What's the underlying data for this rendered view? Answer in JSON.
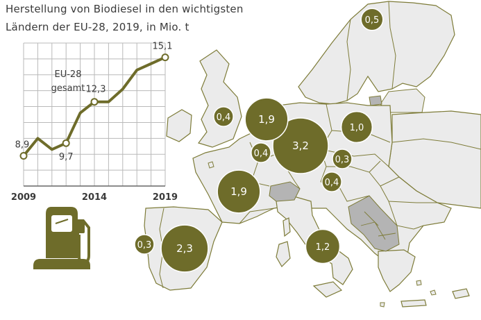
{
  "title": {
    "line1": "Herstellung von Biodiesel in den wichtigsten",
    "line2": "Ländern der EU-28, 2019, in Mio. t"
  },
  "colors": {
    "bubble": "#6e6c2a",
    "bubble_stroke": "#ffffff",
    "land": "#ebebeb",
    "border": "#7d7b38",
    "nonEU": "#b4b4b4",
    "line": "#6e6c2a",
    "grid": "#b9b9b9"
  },
  "icons": {
    "pump": "fuel-pump-icon"
  },
  "chart_data": [
    {
      "type": "line",
      "title": "EU-28 gesamt",
      "series_label_line1": "EU-28",
      "series_label_line2": "gesamt",
      "x": [
        2009,
        2010,
        2011,
        2012,
        2013,
        2014,
        2015,
        2016,
        2017,
        2018,
        2019
      ],
      "values": [
        8.9,
        10.0,
        9.3,
        9.7,
        11.6,
        12.3,
        12.3,
        13.1,
        14.3,
        14.7,
        15.1
      ],
      "labels": [
        {
          "x": 2009,
          "text": "8,9"
        },
        {
          "x": 2012,
          "text": "9,7"
        },
        {
          "x": 2014,
          "text": "12,3"
        },
        {
          "x": 2019,
          "text": "15,1"
        }
      ],
      "xticks": [
        {
          "x": 2009,
          "text": "2009"
        },
        {
          "x": 2014,
          "text": "2014"
        },
        {
          "x": 2019,
          "text": "2019"
        }
      ],
      "xlim": [
        2009,
        2019
      ],
      "ylim": [
        7,
        16
      ],
      "grid": true
    },
    {
      "type": "bubble-map",
      "title": "Herstellung von Biodiesel in den wichtigsten Ländern der EU-28, 2019, in Mio. t",
      "countries": [
        {
          "country": "Schweden",
          "value": 0.5,
          "label": "0,5"
        },
        {
          "country": "Großbritannien",
          "value": 0.4,
          "label": "0,4"
        },
        {
          "country": "Niederlande",
          "value": 1.9,
          "label": "1,9"
        },
        {
          "country": "Polen",
          "value": 1.0,
          "label": "1,0"
        },
        {
          "country": "Belgien",
          "value": 0.4,
          "label": "0,4"
        },
        {
          "country": "Deutschland",
          "value": 3.2,
          "label": "3,2"
        },
        {
          "country": "Tschechien",
          "value": 0.3,
          "label": "0,3"
        },
        {
          "country": "Österreich",
          "value": 0.4,
          "label": "0,4"
        },
        {
          "country": "Frankreich",
          "value": 1.9,
          "label": "1,9"
        },
        {
          "country": "Portugal",
          "value": 0.3,
          "label": "0,3"
        },
        {
          "country": "Spanien",
          "value": 2.3,
          "label": "2,3"
        },
        {
          "country": "Italien",
          "value": 1.2,
          "label": "1,2"
        }
      ]
    }
  ]
}
